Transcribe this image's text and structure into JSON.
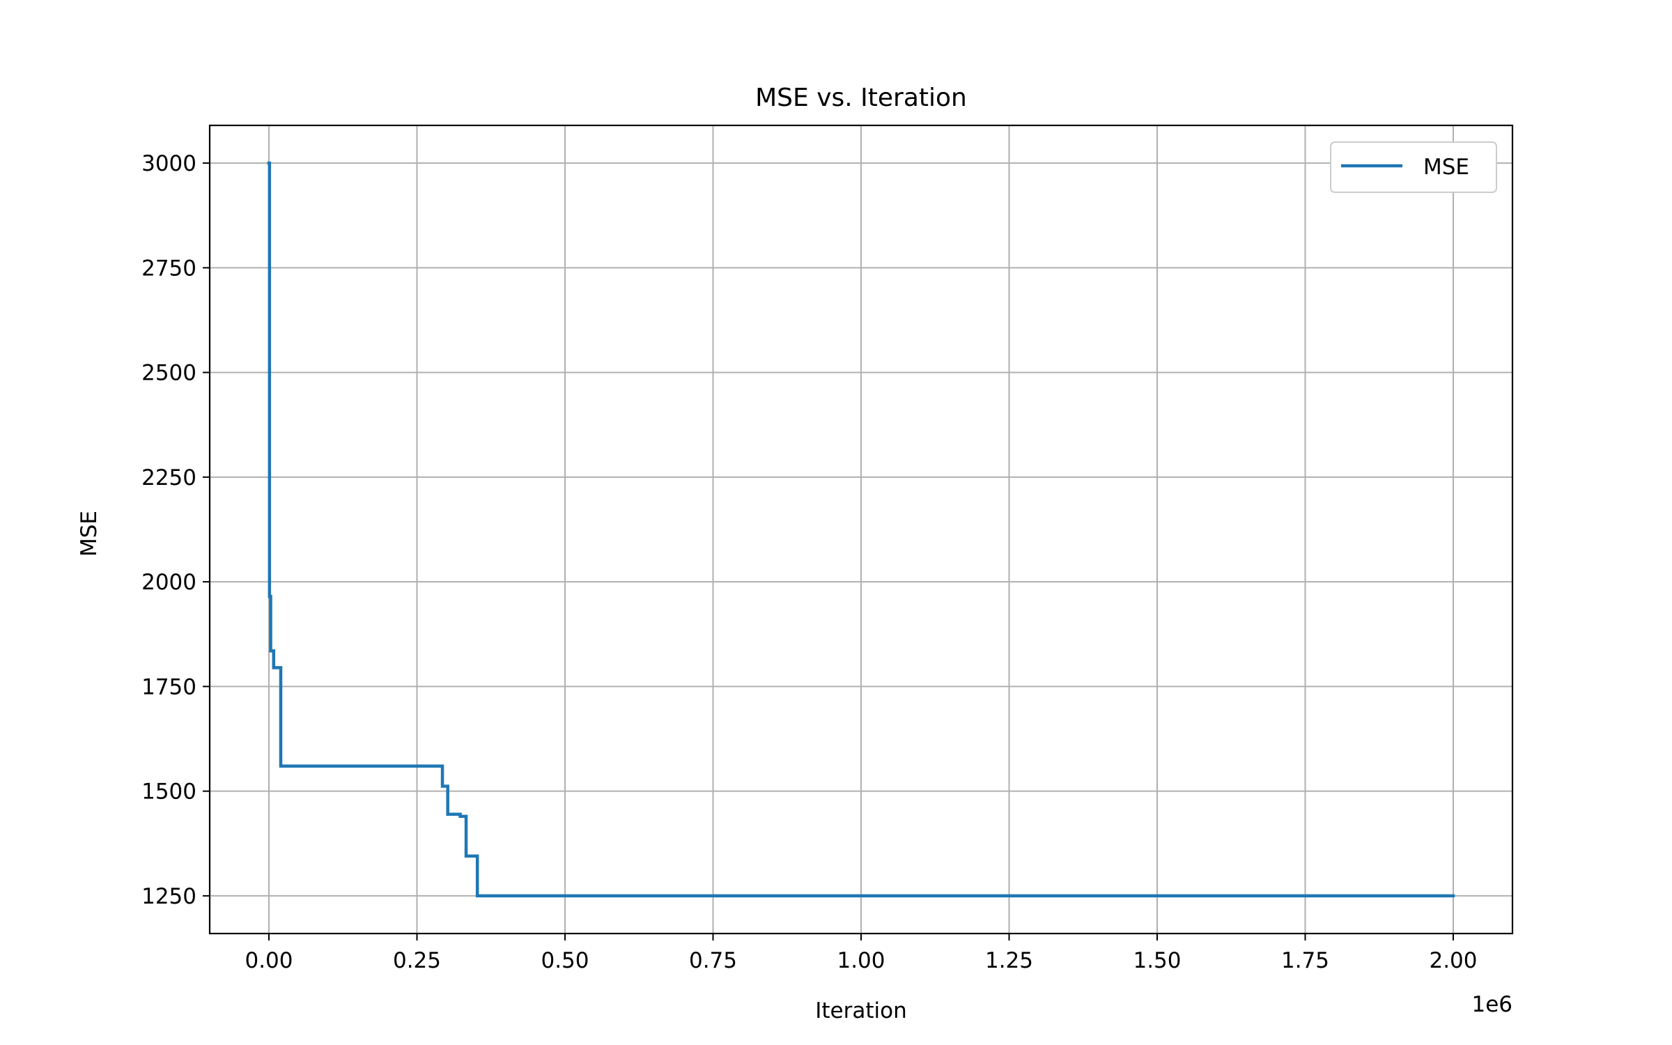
{
  "chart_data": {
    "type": "line",
    "title": "MSE vs. Iteration",
    "xlabel": "Iteration",
    "ylabel": "MSE",
    "x_offset_text": "1e6",
    "xlim": [
      -100000,
      2100000
    ],
    "ylim": [
      1160,
      3090
    ],
    "x_ticks": [
      0,
      250000,
      500000,
      750000,
      1000000,
      1250000,
      1500000,
      1750000,
      2000000
    ],
    "x_tick_labels": [
      "0.00",
      "0.25",
      "0.50",
      "0.75",
      "1.00",
      "1.25",
      "1.50",
      "1.75",
      "2.00"
    ],
    "y_ticks": [
      1250,
      1500,
      1750,
      2000,
      2250,
      2500,
      2750,
      3000
    ],
    "y_tick_labels": [
      "1250",
      "1500",
      "1750",
      "2000",
      "2250",
      "2500",
      "2750",
      "3000"
    ],
    "grid": true,
    "legend_position": "top-right",
    "series": [
      {
        "name": "MSE",
        "color": "#1f77b4",
        "step": "post",
        "x": [
          0,
          1000,
          3000,
          8000,
          18000,
          20000,
          290000,
          293000,
          302000,
          320000,
          323000,
          333000,
          337000,
          350000,
          352000,
          2000000
        ],
        "y": [
          3000,
          1965,
          1835,
          1795,
          1795,
          1560,
          1560,
          1512,
          1445,
          1445,
          1440,
          1345,
          1345,
          1345,
          1250,
          1250
        ]
      }
    ]
  }
}
